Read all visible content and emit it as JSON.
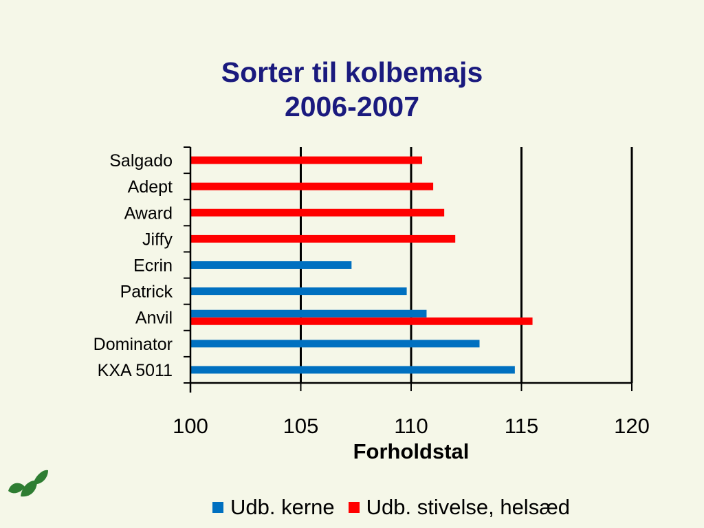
{
  "chart_data": {
    "type": "bar",
    "orientation": "horizontal",
    "title_line1": "Sorter til kolbemajs",
    "title_line2": "2006-2007",
    "xlabel": "Forholdstal",
    "ylabel": "",
    "xlim": [
      100,
      120
    ],
    "xticks": [
      "100",
      "105",
      "110",
      "115",
      "120"
    ],
    "grid": "vertical",
    "legend_position": "bottom",
    "categories": [
      "Salgado",
      "Adept",
      "Award",
      "Jiffy",
      "Ecrin",
      "Patrick",
      "Anvil",
      "Dominator",
      "KXA 5011"
    ],
    "series": [
      {
        "name": "Udb. kerne",
        "color": "#0070c0",
        "values": [
          null,
          null,
          null,
          null,
          107.3,
          109.8,
          110.7,
          113.1,
          114.7
        ]
      },
      {
        "name": "Udb. stivelse, helsæd",
        "color": "#ff0000",
        "values": [
          110.5,
          111.0,
          111.5,
          112.0,
          null,
          null,
          115.5,
          null,
          null
        ]
      }
    ]
  },
  "colors": {
    "title": "#1a1a7e",
    "background": "#f5f7e8",
    "logo": "#2e7d32"
  },
  "icons": {
    "logo": "leaf-logo-icon"
  }
}
